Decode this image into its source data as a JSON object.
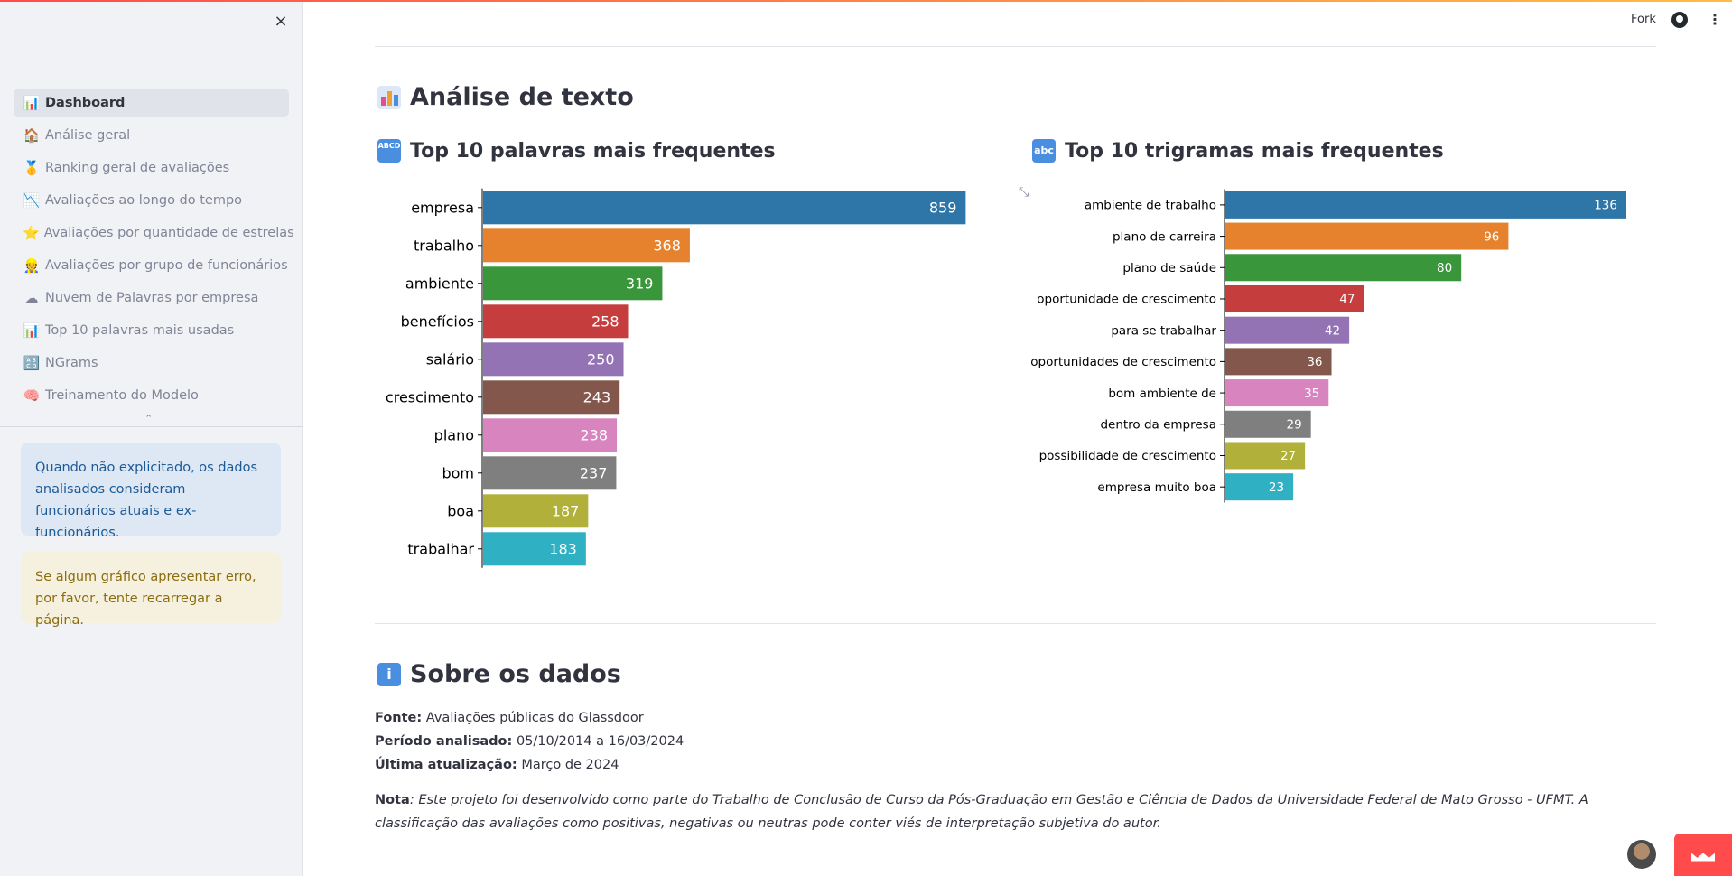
{
  "sidebar": {
    "close_label": "×",
    "nav": [
      {
        "icon": "📊",
        "label": "Dashboard",
        "active": true
      },
      {
        "icon": "🏠",
        "label": "Análise geral"
      },
      {
        "icon": "🥇",
        "label": "Ranking geral de avaliações"
      },
      {
        "icon": "📉",
        "label": "Avaliações ao longo do tempo"
      },
      {
        "icon": "⭐",
        "label": "Avaliações por quantidade de estrelas"
      },
      {
        "icon": "👷",
        "label": "Avaliações por grupo de funcionários"
      },
      {
        "icon": "☁",
        "label": "Nuvem de Palavras por empresa"
      },
      {
        "icon": "📊",
        "label": "Top 10 palavras mais usadas"
      },
      {
        "icon": "🔠",
        "label": "NGrams"
      },
      {
        "icon": "🧠",
        "label": "Treinamento do Modelo"
      }
    ],
    "collapse_glyph": "⌃",
    "info_alert": "Quando não explicitado, os dados analisados consideram funcionários atuais e ex-funcionários.",
    "warning_alert": "Se algum gráfico apresentar erro, por favor, tente recarregar a página."
  },
  "header": {
    "fork_label": "Fork",
    "github_icon": "github-icon",
    "menu_glyph": "⋮"
  },
  "main": {
    "section_title": "Análise de texto",
    "words_title": "Top 10 palavras mais frequentes",
    "words_icon_text": "ABCD",
    "trigrams_title": "Top 10 trigramas mais frequentes",
    "trigrams_icon_text": "abc",
    "about_title": "Sobre os dados",
    "about_icon_text": "i",
    "source_label": "Fonte:",
    "source_value": "Avaliações públicas do Glassdoor",
    "period_label": "Período analisado:",
    "period_value": "05/10/2014 a 16/03/2024",
    "updated_label": "Última atualização:",
    "updated_value": "Março de 2024",
    "note_label": "Nota",
    "note_text": ": Este projeto foi desenvolvido como parte do Trabalho de Conclusão de Curso da Pós-Graduação em Gestão e Ciência de Dados da Universidade Federal de Mato Grosso - UFMT. A classificação das avaliações como positivas, negativas ou neutras pode conter viés de interpretação subjetiva do autor."
  },
  "colors": [
    "#2e75a8",
    "#e6822d",
    "#3a963a",
    "#c63d3d",
    "#9373b3",
    "#84574d",
    "#d784bf",
    "#7f7f7f",
    "#b0b03a",
    "#2fb0c3"
  ],
  "chart_data": [
    {
      "type": "bar",
      "orientation": "horizontal",
      "title": "Top 10 palavras mais frequentes",
      "categories": [
        "empresa",
        "trabalho",
        "ambiente",
        "benefícios",
        "salário",
        "crescimento",
        "plano",
        "bom",
        "boa",
        "trabalhar"
      ],
      "values": [
        859,
        368,
        319,
        258,
        250,
        243,
        238,
        237,
        187,
        183
      ],
      "xlim": [
        0,
        860
      ]
    },
    {
      "type": "bar",
      "orientation": "horizontal",
      "title": "Top 10 trigramas mais frequentes",
      "categories": [
        "ambiente de trabalho",
        "plano de carreira",
        "plano de saúde",
        "oportunidade de crescimento",
        "para se trabalhar",
        "oportunidades de crescimento",
        "bom ambiente de",
        "dentro da empresa",
        "possibilidade de crescimento",
        "empresa muito boa"
      ],
      "values": [
        136,
        96,
        80,
        47,
        42,
        36,
        35,
        29,
        27,
        23
      ],
      "xlim": [
        0,
        136
      ]
    }
  ]
}
